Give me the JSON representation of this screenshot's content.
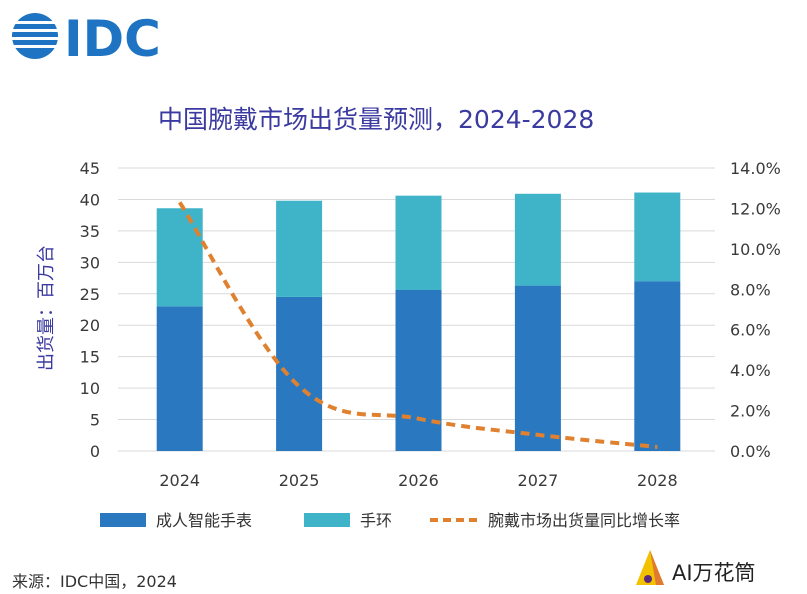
{
  "logo": {
    "text": "IDC"
  },
  "watermark": {
    "text": "AI万花筒"
  },
  "source": "来源：IDC中国，2024",
  "colors": {
    "logo": "#1e73c3",
    "title": "#3b3aa0",
    "ylabel": "#3b3aa0",
    "bar_bottom": "#2a78bf",
    "bar_top": "#3fb4c8",
    "line": "#e0812f",
    "grid": "#d9d9d9"
  },
  "chart_data": {
    "type": "bar",
    "stacked": true,
    "title": "中国腕戴市场出货量预测，2024-2028",
    "ylabel": "出货量：百万台",
    "categories": [
      "2024",
      "2025",
      "2026",
      "2027",
      "2028"
    ],
    "series": [
      {
        "name": "成人智能手表",
        "type": "bar",
        "axis": "left",
        "values": [
          23.0,
          24.5,
          25.6,
          26.3,
          27.0
        ]
      },
      {
        "name": "手环",
        "type": "bar",
        "axis": "left",
        "values": [
          15.6,
          15.3,
          15.0,
          14.6,
          14.1
        ]
      },
      {
        "name": "腕戴市场出货量同比增长率",
        "type": "line",
        "style": "dashed",
        "axis": "right",
        "values": [
          12.3,
          3.2,
          1.6,
          0.8,
          0.2
        ]
      }
    ],
    "ylim": [
      0,
      45
    ],
    "yticks": [
      "0",
      "5",
      "10",
      "15",
      "20",
      "25",
      "30",
      "35",
      "40",
      "45"
    ],
    "y2lim": [
      0,
      14
    ],
    "y2ticks": [
      "0.0%",
      "2.0%",
      "4.0%",
      "6.0%",
      "8.0%",
      "10.0%",
      "12.0%",
      "14.0%"
    ],
    "grid": true,
    "legend_position": "bottom"
  }
}
